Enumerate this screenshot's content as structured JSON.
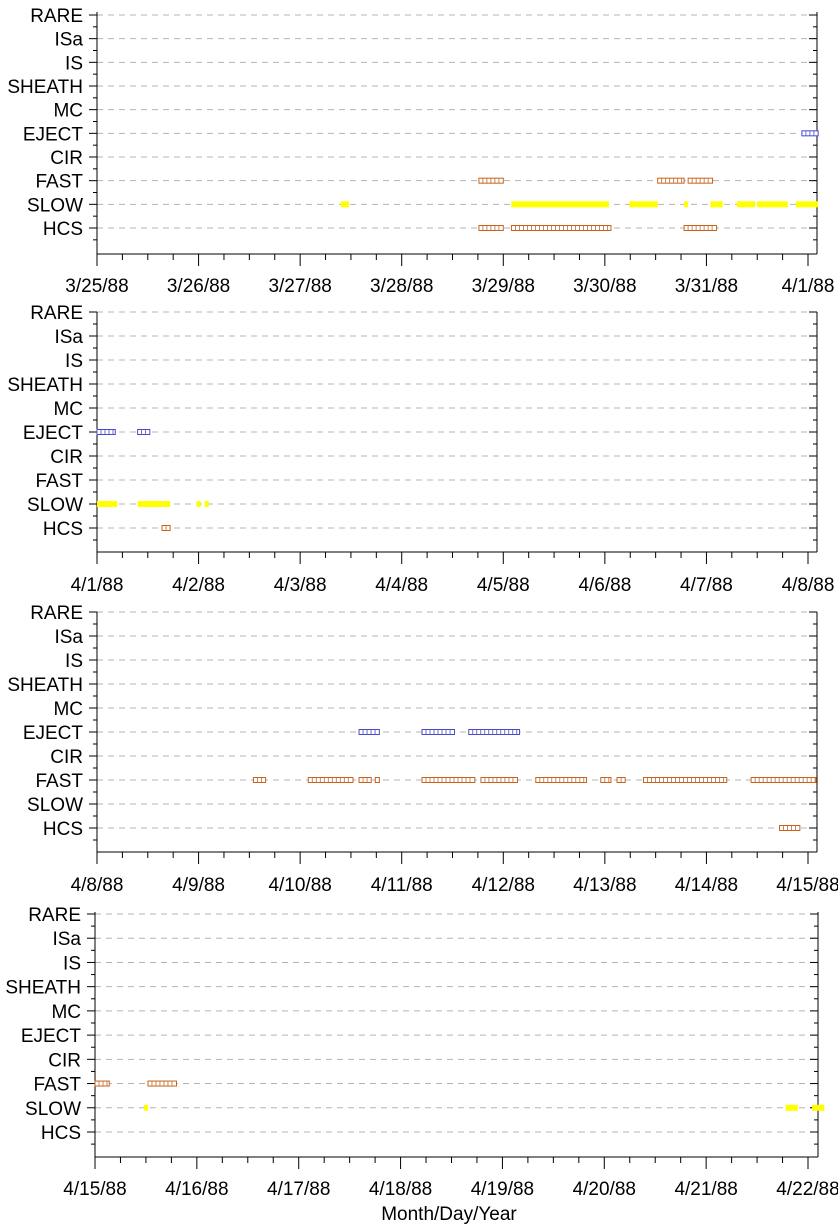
{
  "colors": {
    "EJECT": "#4a4ad0",
    "FAST": "#c8641e",
    "HCS": "#c8641e",
    "SLOW": "#ffff00",
    "grid": "#b4b4b4"
  },
  "chart_data": {
    "type": "timeline",
    "xlabel": "Month/Day/Year",
    "categories": [
      "RARE",
      "ISa",
      "IS",
      "SHEATH",
      "MC",
      "EJECT",
      "CIR",
      "FAST",
      "SLOW",
      "HCS"
    ],
    "panels": [
      {
        "xlim": [
          0,
          7
        ],
        "tick_labels": [
          "3/25/88",
          "3/26/88",
          "3/27/88",
          "3/28/88",
          "3/29/88",
          "3/30/88",
          "3/31/88",
          "4/1/88"
        ],
        "events": [
          {
            "cat": "EJECT",
            "s": 6.94,
            "e": 7.1
          },
          {
            "cat": "FAST",
            "s": 3.76,
            "e": 4.0
          },
          {
            "cat": "FAST",
            "s": 5.52,
            "e": 5.78
          },
          {
            "cat": "FAST",
            "s": 5.82,
            "e": 6.06
          },
          {
            "cat": "SLOW",
            "s": 2.4,
            "e": 2.48
          },
          {
            "cat": "SLOW",
            "s": 4.08,
            "e": 5.04
          },
          {
            "cat": "SLOW",
            "s": 5.24,
            "e": 5.52
          },
          {
            "cat": "SLOW",
            "s": 5.78,
            "e": 5.82
          },
          {
            "cat": "SLOW",
            "s": 6.04,
            "e": 6.16
          },
          {
            "cat": "SLOW",
            "s": 6.3,
            "e": 6.48
          },
          {
            "cat": "SLOW",
            "s": 6.5,
            "e": 6.8
          },
          {
            "cat": "SLOW",
            "s": 6.88,
            "e": 7.1
          },
          {
            "cat": "HCS",
            "s": 3.76,
            "e": 4.0
          },
          {
            "cat": "HCS",
            "s": 4.08,
            "e": 5.06
          },
          {
            "cat": "HCS",
            "s": 5.78,
            "e": 6.1
          }
        ]
      },
      {
        "xlim": [
          0,
          7
        ],
        "tick_labels": [
          "4/1/88",
          "4/2/88",
          "4/3/88",
          "4/4/88",
          "4/5/88",
          "4/6/88",
          "4/7/88",
          "4/8/88"
        ],
        "events": [
          {
            "cat": "EJECT",
            "s": 0.0,
            "e": 0.18
          },
          {
            "cat": "EJECT",
            "s": 0.4,
            "e": 0.52
          },
          {
            "cat": "SLOW",
            "s": 0.0,
            "e": 0.2
          },
          {
            "cat": "SLOW",
            "s": 0.4,
            "e": 0.72
          },
          {
            "cat": "SLOW",
            "s": 0.98,
            "e": 1.02
          },
          {
            "cat": "SLOW",
            "s": 1.06,
            "e": 1.1
          },
          {
            "cat": "HCS",
            "s": 0.64,
            "e": 0.72
          }
        ]
      },
      {
        "xlim": [
          0,
          7
        ],
        "tick_labels": [
          "4/8/88",
          "4/9/88",
          "4/10/88",
          "4/11/88",
          "4/12/88",
          "4/13/88",
          "4/14/88",
          "4/15/88"
        ],
        "events": [
          {
            "cat": "EJECT",
            "s": 2.58,
            "e": 2.78
          },
          {
            "cat": "EJECT",
            "s": 3.2,
            "e": 3.52
          },
          {
            "cat": "EJECT",
            "s": 3.66,
            "e": 4.16
          },
          {
            "cat": "FAST",
            "s": 1.54,
            "e": 1.66
          },
          {
            "cat": "FAST",
            "s": 2.08,
            "e": 2.52
          },
          {
            "cat": "FAST",
            "s": 2.58,
            "e": 2.7
          },
          {
            "cat": "FAST",
            "s": 2.74,
            "e": 2.78
          },
          {
            "cat": "FAST",
            "s": 3.2,
            "e": 3.72
          },
          {
            "cat": "FAST",
            "s": 3.78,
            "e": 4.14
          },
          {
            "cat": "FAST",
            "s": 4.32,
            "e": 4.82
          },
          {
            "cat": "FAST",
            "s": 4.96,
            "e": 5.06
          },
          {
            "cat": "FAST",
            "s": 5.12,
            "e": 5.2
          },
          {
            "cat": "FAST",
            "s": 5.38,
            "e": 6.2
          },
          {
            "cat": "FAST",
            "s": 6.44,
            "e": 7.08
          },
          {
            "cat": "HCS",
            "s": 6.72,
            "e": 6.92
          }
        ]
      },
      {
        "xlim": [
          0,
          7
        ],
        "tick_labels": [
          "4/15/88",
          "4/16/88",
          "4/17/88",
          "4/18/88",
          "4/19/88",
          "4/20/88",
          "4/21/88",
          "4/22/88"
        ],
        "events": [
          {
            "cat": "FAST",
            "s": 0.0,
            "e": 0.14
          },
          {
            "cat": "FAST",
            "s": 0.52,
            "e": 0.8
          },
          {
            "cat": "SLOW",
            "s": 0.48,
            "e": 0.52
          },
          {
            "cat": "SLOW",
            "s": 6.78,
            "e": 6.9
          },
          {
            "cat": "SLOW",
            "s": 7.04,
            "e": 7.16
          }
        ]
      }
    ]
  }
}
